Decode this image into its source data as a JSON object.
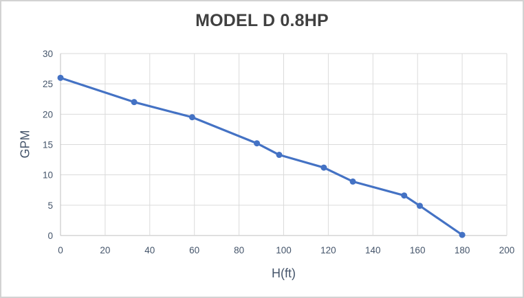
{
  "window": {
    "background": "#ffffff",
    "border_color": "#d2d2d2"
  },
  "chart_data": {
    "type": "line",
    "title": "MODEL D 0.8HP",
    "xlabel": "H(ft)",
    "ylabel": "GPM",
    "xlim": [
      0,
      200
    ],
    "ylim": [
      0,
      30
    ],
    "xticks": [
      0,
      20,
      40,
      60,
      80,
      100,
      120,
      140,
      160,
      180,
      200
    ],
    "yticks": [
      0,
      5,
      10,
      15,
      20,
      25,
      30
    ],
    "grid": true,
    "legend": false,
    "series": [
      {
        "name": "MODEL D 0.8HP",
        "color": "#4472C4",
        "marker": "circle",
        "points": [
          {
            "x": 0,
            "y": 26
          },
          {
            "x": 33,
            "y": 22
          },
          {
            "x": 59,
            "y": 19.5
          },
          {
            "x": 88,
            "y": 15.2
          },
          {
            "x": 98,
            "y": 13.3
          },
          {
            "x": 118,
            "y": 11.2
          },
          {
            "x": 131,
            "y": 8.9
          },
          {
            "x": 154,
            "y": 6.6
          },
          {
            "x": 161,
            "y": 4.9
          },
          {
            "x": 180,
            "y": 0.1
          }
        ]
      }
    ],
    "colors": {
      "gridline": "#DADADA",
      "axis_line": "#BFBFBF",
      "tick_label": "#44546A",
      "title": "#404040",
      "axis_title": "#44546A"
    }
  }
}
